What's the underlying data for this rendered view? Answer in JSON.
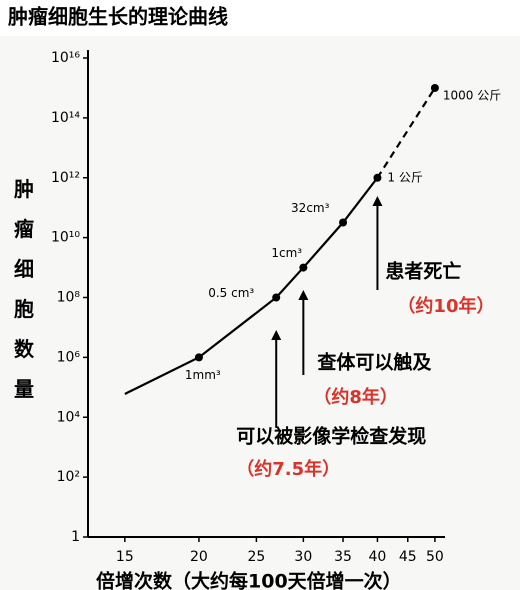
{
  "chart_data": {
    "type": "line",
    "title": "肿瘤细胞生长的理论曲线",
    "y_label": "肿瘤细胞数量",
    "x_label": "倍增次数（大约每100天倍增一次）",
    "x": [
      15,
      20,
      27,
      30,
      35,
      40,
      50
    ],
    "series": [
      {
        "color": "#000000",
        "line_style": "solid",
        "values": [
          60000,
          1000000,
          100000000,
          1000000000,
          32000000000,
          1000000000000,
          null
        ]
      },
      {
        "color": "#000000",
        "line_style": "dashed",
        "values": [
          null,
          null,
          null,
          null,
          null,
          1000000000000,
          1000000000000000
        ]
      }
    ],
    "point_labels": [
      null,
      "1mm³",
      "0.5 cm³",
      "1cm³",
      "32cm³",
      "1 公斤",
      "1000 公斤"
    ],
    "xlim": [
      13,
      52
    ],
    "x_log": true,
    "xticks": [
      15,
      20,
      25,
      30,
      35,
      40,
      45,
      50
    ],
    "ylim": [
      1,
      10000000000000000
    ],
    "y_log": true,
    "yticks": [
      1,
      {
        "value": 100,
        "label": "10²"
      },
      {
        "value": 10000,
        "label": "10⁴"
      },
      {
        "value": 1000000,
        "label": "10⁶"
      },
      {
        "value": 100000000,
        "label": "10⁸"
      },
      {
        "value": 10000000000,
        "label": "10¹⁰"
      },
      {
        "value": 1000000000000,
        "label": "10¹²"
      },
      {
        "value": 100000000000000,
        "label": "10¹⁴"
      },
      {
        "value": 10000000000000000,
        "label": "10¹⁶"
      }
    ],
    "annotations": [
      {
        "x": 40,
        "text": "患者死亡",
        "note": "（约10年）"
      },
      {
        "x": 30,
        "text": "查体可以触及",
        "note": "（约8年）"
      },
      {
        "x": 27,
        "text": "可以被影像学检查发现",
        "note": "（约7.5年）"
      }
    ],
    "note_color": "#d9342b"
  }
}
